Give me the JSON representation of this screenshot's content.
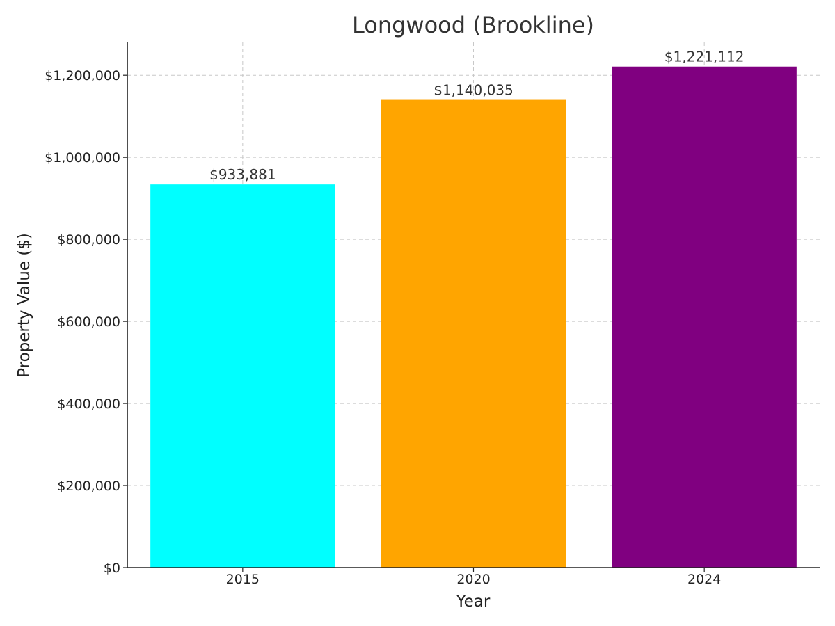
{
  "chart_data": {
    "type": "bar",
    "title": "Longwood (Brookline)",
    "xlabel": "Year",
    "ylabel": "Property Value ($)",
    "categories": [
      "2015",
      "2020",
      "2024"
    ],
    "values": [
      933881,
      1140035,
      1221112
    ],
    "data_labels": [
      "$933,881",
      "$1,140,035",
      "$1,221,112"
    ],
    "bar_colors": [
      "#00ffff",
      "#ffa500",
      "#800080"
    ],
    "ylim": [
      0,
      1280000
    ],
    "yticks": [
      0,
      200000,
      400000,
      600000,
      800000,
      1000000,
      1200000
    ],
    "ytick_labels": [
      "$0",
      "$200,000",
      "$400,000",
      "$600,000",
      "$800,000",
      "$1,000,000",
      "$1,200,000"
    ],
    "grid": true
  }
}
